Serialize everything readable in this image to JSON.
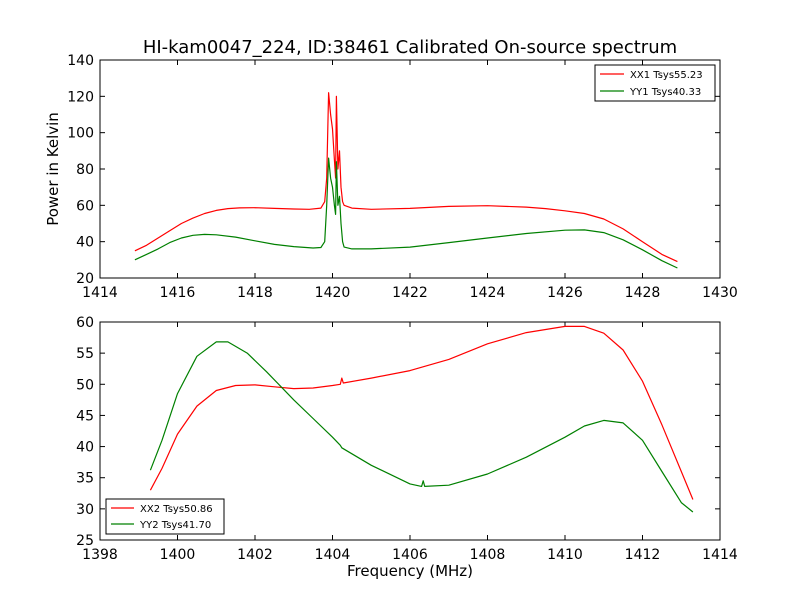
{
  "title": "HI-kam0047_224, ID:38461 Calibrated On-source spectrum",
  "xlabel": "Frequency (MHz)",
  "ylabel": "Power in Kelvin",
  "chart_data": [
    {
      "type": "line",
      "xlim": [
        1414,
        1430
      ],
      "ylim": [
        20,
        140
      ],
      "xticks": [
        "1414",
        "1416",
        "1418",
        "1420",
        "1422",
        "1424",
        "1426",
        "1428",
        "1430"
      ],
      "yticks": [
        "20",
        "40",
        "60",
        "80",
        "100",
        "120",
        "140"
      ],
      "legend_position": "top-right",
      "series": [
        {
          "name": "XX1 Tsys55.23",
          "color": "#ff0000",
          "points": [
            [
              1414.9,
              35
            ],
            [
              1415.2,
              38
            ],
            [
              1415.5,
              42
            ],
            [
              1415.8,
              46
            ],
            [
              1416.1,
              50
            ],
            [
              1416.4,
              53
            ],
            [
              1416.7,
              55.5
            ],
            [
              1417.0,
              57.2
            ],
            [
              1417.3,
              58.2
            ],
            [
              1417.6,
              58.6
            ],
            [
              1418.0,
              58.7
            ],
            [
              1418.5,
              58.3
            ],
            [
              1419.0,
              58.0
            ],
            [
              1419.4,
              57.8
            ],
            [
              1419.7,
              58.5
            ],
            [
              1419.8,
              62
            ],
            [
              1419.85,
              75
            ],
            [
              1419.9,
              122
            ],
            [
              1419.95,
              110
            ],
            [
              1420.0,
              102
            ],
            [
              1420.05,
              85
            ],
            [
              1420.08,
              75
            ],
            [
              1420.1,
              120
            ],
            [
              1420.14,
              80
            ],
            [
              1420.18,
              90
            ],
            [
              1420.22,
              70
            ],
            [
              1420.26,
              62
            ],
            [
              1420.3,
              60
            ],
            [
              1420.5,
              58.5
            ],
            [
              1421.0,
              57.8
            ],
            [
              1422.0,
              58.3
            ],
            [
              1423.0,
              59.4
            ],
            [
              1424.0,
              59.8
            ],
            [
              1425.0,
              59.0
            ],
            [
              1425.5,
              58.2
            ],
            [
              1426.0,
              57.0
            ],
            [
              1426.5,
              55.5
            ],
            [
              1427.0,
              52.5
            ],
            [
              1427.5,
              47.0
            ],
            [
              1428.0,
              40.0
            ],
            [
              1428.5,
              33.0
            ],
            [
              1428.9,
              29.0
            ]
          ]
        },
        {
          "name": "YY1 Tsys40.33",
          "color": "#008000",
          "points": [
            [
              1414.9,
              30
            ],
            [
              1415.2,
              33
            ],
            [
              1415.5,
              36
            ],
            [
              1415.8,
              39.5
            ],
            [
              1416.1,
              42
            ],
            [
              1416.4,
              43.5
            ],
            [
              1416.7,
              44
            ],
            [
              1417.0,
              43.8
            ],
            [
              1417.5,
              42.5
            ],
            [
              1418.0,
              40.5
            ],
            [
              1418.5,
              38.5
            ],
            [
              1419.0,
              37.3
            ],
            [
              1419.5,
              36.5
            ],
            [
              1419.7,
              36.8
            ],
            [
              1419.8,
              40
            ],
            [
              1419.85,
              60
            ],
            [
              1419.9,
              86
            ],
            [
              1419.95,
              75
            ],
            [
              1420.0,
              70
            ],
            [
              1420.05,
              60
            ],
            [
              1420.08,
              55
            ],
            [
              1420.1,
              84
            ],
            [
              1420.14,
              60
            ],
            [
              1420.18,
              65
            ],
            [
              1420.22,
              50
            ],
            [
              1420.26,
              40
            ],
            [
              1420.3,
              37
            ],
            [
              1420.5,
              36
            ],
            [
              1421.0,
              36
            ],
            [
              1422.0,
              37
            ],
            [
              1423.0,
              39.5
            ],
            [
              1424.0,
              42
            ],
            [
              1425.0,
              44.5
            ],
            [
              1426.0,
              46.3
            ],
            [
              1426.5,
              46.5
            ],
            [
              1427.0,
              45
            ],
            [
              1427.5,
              41
            ],
            [
              1428.0,
              35.5
            ],
            [
              1428.5,
              29.5
            ],
            [
              1428.9,
              25.5
            ]
          ]
        }
      ]
    },
    {
      "type": "line",
      "xlim": [
        1398,
        1414
      ],
      "ylim": [
        25,
        60
      ],
      "xticks": [
        "1398",
        "1400",
        "1402",
        "1404",
        "1406",
        "1408",
        "1410",
        "1412",
        "1414"
      ],
      "yticks": [
        "25",
        "30",
        "35",
        "40",
        "45",
        "50",
        "55",
        "60"
      ],
      "legend_position": "bottom-left",
      "series": [
        {
          "name": "XX2 Tsys50.86",
          "color": "#ff0000",
          "points": [
            [
              1399.3,
              33
            ],
            [
              1399.6,
              36.5
            ],
            [
              1400.0,
              42
            ],
            [
              1400.5,
              46.5
            ],
            [
              1401.0,
              49
            ],
            [
              1401.5,
              49.8
            ],
            [
              1402.0,
              49.9
            ],
            [
              1402.5,
              49.6
            ],
            [
              1403.0,
              49.3
            ],
            [
              1403.5,
              49.4
            ],
            [
              1404.0,
              49.8
            ],
            [
              1404.2,
              50.0
            ],
            [
              1404.24,
              51.0
            ],
            [
              1404.28,
              50.2
            ],
            [
              1405.0,
              51.0
            ],
            [
              1406.0,
              52.2
            ],
            [
              1407.0,
              54.0
            ],
            [
              1408.0,
              56.5
            ],
            [
              1409.0,
              58.3
            ],
            [
              1410.0,
              59.3
            ],
            [
              1410.5,
              59.3
            ],
            [
              1411.0,
              58.2
            ],
            [
              1411.5,
              55.5
            ],
            [
              1412.0,
              50.5
            ],
            [
              1412.5,
              43.5
            ],
            [
              1413.0,
              36
            ],
            [
              1413.3,
              31.5
            ]
          ]
        },
        {
          "name": "YY2 Tsys41.70",
          "color": "#008000",
          "points": [
            [
              1399.3,
              36.2
            ],
            [
              1399.6,
              41
            ],
            [
              1400.0,
              48.5
            ],
            [
              1400.5,
              54.5
            ],
            [
              1401.0,
              56.8
            ],
            [
              1401.3,
              56.8
            ],
            [
              1401.8,
              55
            ],
            [
              1402.3,
              52
            ],
            [
              1403.0,
              47.5
            ],
            [
              1403.5,
              44.5
            ],
            [
              1404.0,
              41.5
            ],
            [
              1404.2,
              40.2
            ],
            [
              1404.24,
              39.8
            ],
            [
              1405.0,
              37
            ],
            [
              1406.0,
              34
            ],
            [
              1406.3,
              33.6
            ],
            [
              1406.34,
              34.5
            ],
            [
              1406.38,
              33.6
            ],
            [
              1407.0,
              33.8
            ],
            [
              1408.0,
              35.6
            ],
            [
              1409.0,
              38.3
            ],
            [
              1410.0,
              41.5
            ],
            [
              1410.5,
              43.3
            ],
            [
              1411.0,
              44.2
            ],
            [
              1411.5,
              43.8
            ],
            [
              1412.0,
              41
            ],
            [
              1412.5,
              36
            ],
            [
              1413.0,
              31
            ],
            [
              1413.3,
              29.5
            ]
          ]
        }
      ]
    }
  ]
}
